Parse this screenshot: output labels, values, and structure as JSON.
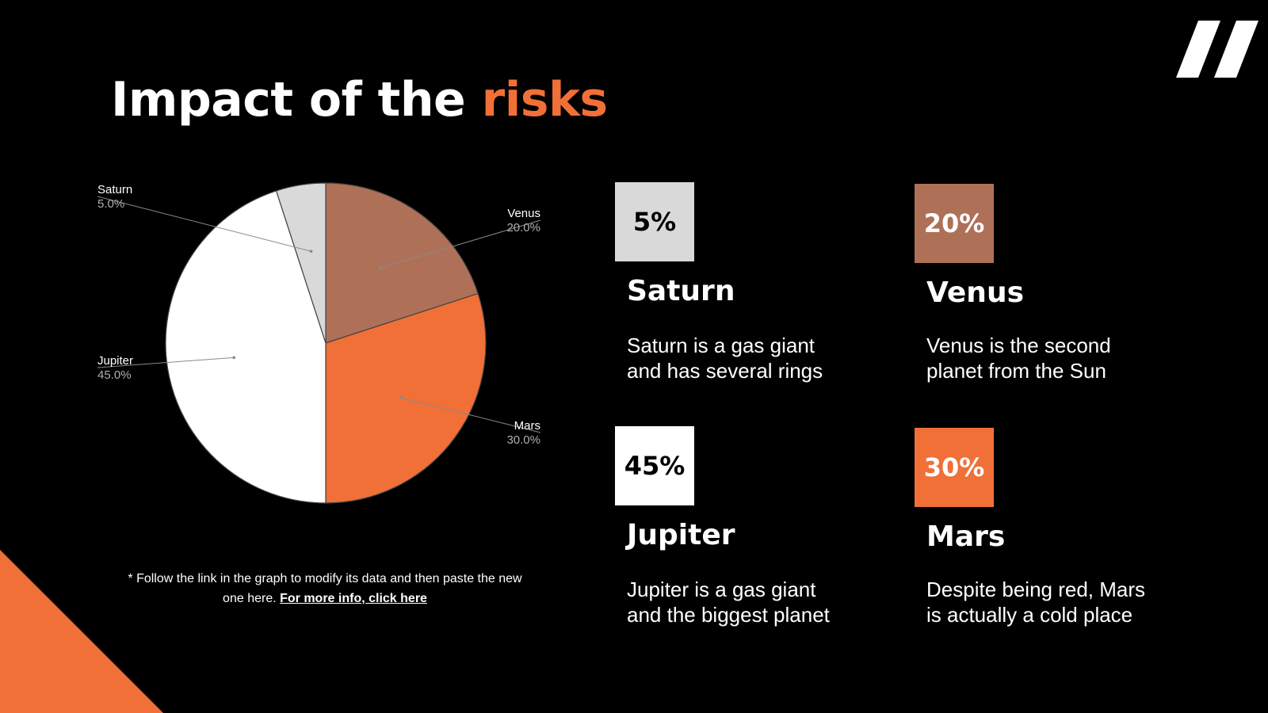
{
  "title": {
    "main": "Impact of the",
    "accent": "risks"
  },
  "colors": {
    "background": "#000000",
    "accent": "#F07038",
    "venus": "#AF7058",
    "saturn": "#D9D9D9",
    "jupiter": "#FFFFFF",
    "mars": "#F07038",
    "text": "#FFFFFF"
  },
  "chart_data": {
    "type": "pie",
    "categories": [
      "Venus",
      "Mars",
      "Jupiter",
      "Saturn"
    ],
    "values": [
      20,
      30,
      45,
      5
    ],
    "labels": [
      "20.0%",
      "30.0%",
      "45.0%",
      "5.0%"
    ],
    "colors": [
      "#AF7058",
      "#F07038",
      "#FFFFFF",
      "#D9D9D9"
    ],
    "start": "top, clockwise",
    "legend": "none"
  },
  "cards": [
    {
      "id": "saturn",
      "percent": "5%",
      "name": "Saturn",
      "desc_line1": "Saturn is a gas giant",
      "desc_line2": "and has several rings",
      "color": "#D9D9D9",
      "text_color": "#000000"
    },
    {
      "id": "venus",
      "percent": "20%",
      "name": "Venus",
      "desc_line1": "Venus is the second",
      "desc_line2": "planet from the Sun",
      "color": "#AF7058",
      "text_color": "#FFFFFF"
    },
    {
      "id": "jupiter",
      "percent": "45%",
      "name": "Jupiter",
      "desc_line1": "Jupiter is a gas giant",
      "desc_line2": "and the biggest planet",
      "color": "#FFFFFF",
      "text_color": "#000000"
    },
    {
      "id": "mars",
      "percent": "30%",
      "name": "Mars",
      "desc_line1": "Despite being red, Mars",
      "desc_line2": "is actually a cold place",
      "color": "#F07038",
      "text_color": "#FFFFFF"
    }
  ],
  "footnote": {
    "text_line1": "* Follow the link in the graph to modify its data and then paste the new",
    "text_line2": "one here.",
    "link": "For more info, click here"
  }
}
